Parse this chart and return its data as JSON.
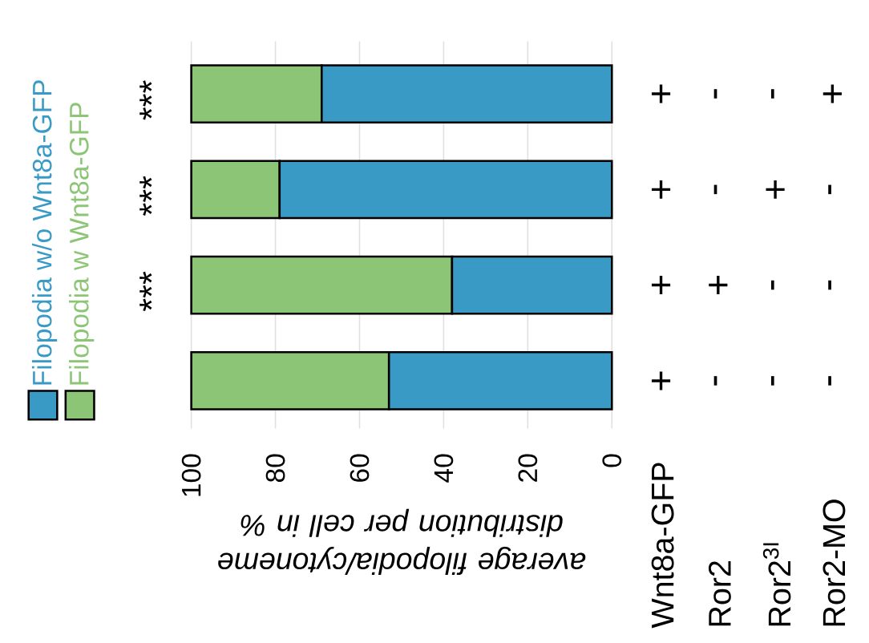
{
  "chart_data": {
    "type": "bar",
    "orientation": "horizontal",
    "stacked": true,
    "categories": [
      null,
      null,
      null,
      null
    ],
    "series": [
      {
        "name": "Filopodia w/o Wnt8a-GFP",
        "color": "#3a9ac6",
        "values": [
          69,
          79,
          38,
          53
        ]
      },
      {
        "name": "Filopodia w Wnt8a-GFP",
        "color": "#8cc576",
        "values": [
          31,
          21,
          62,
          47
        ]
      }
    ],
    "xlabel": "average filopodia/cytoneme distribution per cell in %",
    "xlim": [
      100,
      0
    ],
    "xticks": [
      100,
      80,
      60,
      40,
      20,
      0
    ],
    "grid": "x",
    "legend": "left",
    "annotations": [
      "Wnt8a-GFP",
      "Ror2",
      "Ror2$^{3I}$",
      "Ror2-MO",
      "+",
      "+",
      "+",
      "+",
      "-",
      "-",
      "+",
      "-",
      "-",
      "+",
      "-",
      "-",
      "+",
      "-",
      "-",
      "-",
      "***",
      "***",
      "***"
    ]
  }
}
